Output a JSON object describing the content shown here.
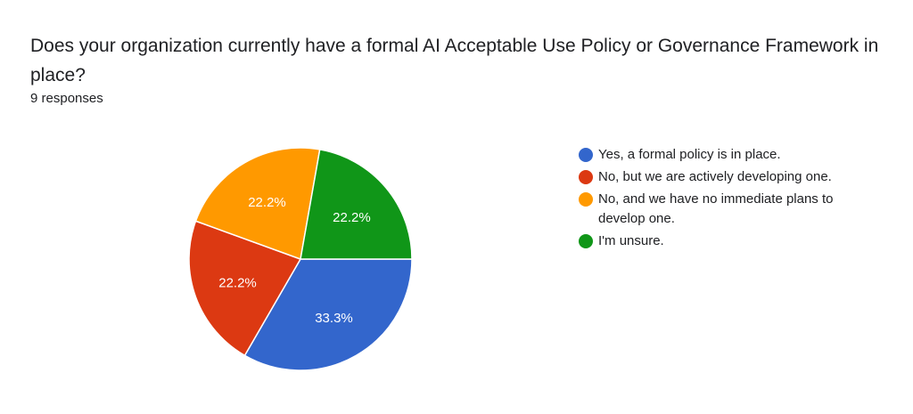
{
  "header": {
    "title": "Does your organization currently have a formal AI Acceptable Use Policy or Governance Framework in place?",
    "response_count": "9 responses"
  },
  "chart_data": {
    "type": "pie",
    "title": "Does your organization currently have a formal AI Acceptable Use Policy or Governance Framework in place?",
    "subtitle": "9 responses",
    "categories": [
      "Yes, a formal policy is in place.",
      "No, but we are actively developing one.",
      "No, and we have no immediate plans to develop one.",
      "I'm unsure."
    ],
    "values": [
      33.3,
      22.2,
      22.2,
      22.2
    ],
    "counts": [
      3,
      2,
      2,
      2
    ],
    "labels": [
      "33.3%",
      "22.2%",
      "22.2%",
      "22.2%"
    ],
    "colors": [
      "#3366cc",
      "#dc3912",
      "#ff9900",
      "#109618"
    ],
    "legend_position": "right",
    "start_angle": "east, clockwise"
  },
  "legend": {
    "items": [
      {
        "label": "Yes, a formal policy is in place.",
        "color": "#3366cc"
      },
      {
        "label": "No, but we are actively developing one.",
        "color": "#dc3912"
      },
      {
        "label": "No, and we have no immediate plans to develop one.",
        "color": "#ff9900"
      },
      {
        "label": "I'm unsure.",
        "color": "#109618"
      }
    ]
  }
}
